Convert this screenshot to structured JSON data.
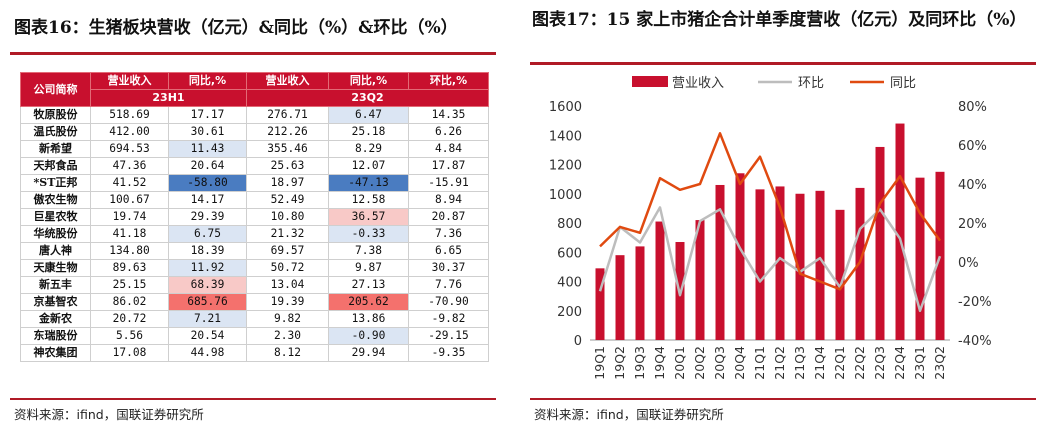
{
  "left": {
    "title": "图表16：生猪板块营收（亿元）&同比（%）&环比（%）",
    "source": "资料来源：ifind，国联证券研究所",
    "header": {
      "company": "公司简称",
      "columns": [
        "营业收入",
        "同比,%",
        "营业收入",
        "同比,%",
        "环比,%"
      ],
      "period_a": "23H1",
      "period_b": "23Q2"
    },
    "rows": [
      {
        "company": "牧原股份",
        "rev_h1": "518.69",
        "yoy_h1": "17.17",
        "rev_q2": "276.71",
        "yoy_q2": "6.47",
        "qoq": "14.35",
        "c_yoy_h1": "white",
        "c_yoy_q2": "blue"
      },
      {
        "company": "温氏股份",
        "rev_h1": "412.00",
        "yoy_h1": "30.61",
        "rev_q2": "212.26",
        "yoy_q2": "25.18",
        "qoq": "6.26",
        "c_yoy_h1": "white",
        "c_yoy_q2": "white"
      },
      {
        "company": "新希望",
        "rev_h1": "694.53",
        "yoy_h1": "11.43",
        "rev_q2": "355.46",
        "yoy_q2": "8.29",
        "qoq": "4.84",
        "c_yoy_h1": "blue",
        "c_yoy_q2": "white"
      },
      {
        "company": "天邦食品",
        "rev_h1": "47.36",
        "yoy_h1": "20.64",
        "rev_q2": "25.63",
        "yoy_q2": "12.07",
        "qoq": "17.87",
        "c_yoy_h1": "white",
        "c_yoy_q2": "white"
      },
      {
        "company": "*ST正邦",
        "rev_h1": "41.52",
        "yoy_h1": "-58.80",
        "rev_q2": "18.97",
        "yoy_q2": "-47.13",
        "qoq": "-15.91",
        "c_yoy_h1": "dblue",
        "c_yoy_q2": "dblue"
      },
      {
        "company": "傲农生物",
        "rev_h1": "100.67",
        "yoy_h1": "14.17",
        "rev_q2": "52.49",
        "yoy_q2": "12.58",
        "qoq": "8.94",
        "c_yoy_h1": "white",
        "c_yoy_q2": "white"
      },
      {
        "company": "巨星农牧",
        "rev_h1": "19.74",
        "yoy_h1": "29.39",
        "rev_q2": "10.80",
        "yoy_q2": "36.57",
        "qoq": "20.87",
        "c_yoy_h1": "white",
        "c_yoy_q2": "lred"
      },
      {
        "company": "华统股份",
        "rev_h1": "41.18",
        "yoy_h1": "6.75",
        "rev_q2": "21.32",
        "yoy_q2": "-0.33",
        "qoq": "7.36",
        "c_yoy_h1": "blue",
        "c_yoy_q2": "blue"
      },
      {
        "company": "唐人神",
        "rev_h1": "134.80",
        "yoy_h1": "18.39",
        "rev_q2": "69.57",
        "yoy_q2": "7.38",
        "qoq": "6.65",
        "c_yoy_h1": "white",
        "c_yoy_q2": "white"
      },
      {
        "company": "天康生物",
        "rev_h1": "89.63",
        "yoy_h1": "11.92",
        "rev_q2": "50.72",
        "yoy_q2": "9.87",
        "qoq": "30.37",
        "c_yoy_h1": "blue",
        "c_yoy_q2": "white"
      },
      {
        "company": "新五丰",
        "rev_h1": "25.15",
        "yoy_h1": "68.39",
        "rev_q2": "13.04",
        "yoy_q2": "27.13",
        "qoq": "7.76",
        "c_yoy_h1": "lred",
        "c_yoy_q2": "white"
      },
      {
        "company": "京基智农",
        "rev_h1": "86.02",
        "yoy_h1": "685.76",
        "rev_q2": "19.39",
        "yoy_q2": "205.62",
        "qoq": "-70.90",
        "c_yoy_h1": "red",
        "c_yoy_q2": "red"
      },
      {
        "company": "金新农",
        "rev_h1": "20.72",
        "yoy_h1": "7.21",
        "rev_q2": "9.82",
        "yoy_q2": "13.86",
        "qoq": "-9.82",
        "c_yoy_h1": "blue",
        "c_yoy_q2": "white"
      },
      {
        "company": "东瑞股份",
        "rev_h1": "5.56",
        "yoy_h1": "20.54",
        "rev_q2": "2.30",
        "yoy_q2": "-0.90",
        "qoq": "-29.15",
        "c_yoy_h1": "white",
        "c_yoy_q2": "blue"
      },
      {
        "company": "神农集团",
        "rev_h1": "17.08",
        "yoy_h1": "44.98",
        "rev_q2": "8.12",
        "yoy_q2": "29.94",
        "qoq": "-9.35",
        "c_yoy_h1": "white",
        "c_yoy_q2": "white"
      }
    ]
  },
  "right": {
    "title": "图表17：15 家上市猪企合计单季度营收（亿元）及同环比（%）",
    "source": "资料来源：ifind，国联证券研究所",
    "chart_data": {
      "type": "bar+line",
      "categories": [
        "19Q1",
        "19Q2",
        "19Q3",
        "19Q4",
        "20Q1",
        "20Q2",
        "20Q3",
        "20Q4",
        "21Q1",
        "21Q2",
        "21Q3",
        "21Q4",
        "22Q1",
        "22Q2",
        "22Q3",
        "22Q4",
        "23Q1",
        "23Q2"
      ],
      "series": [
        {
          "name": "营业收入",
          "type": "bar",
          "axis": "left",
          "color": "#c8102e",
          "values": [
            490,
            580,
            640,
            810,
            670,
            820,
            1060,
            1140,
            1030,
            1050,
            1000,
            1020,
            890,
            1040,
            1320,
            1480,
            1110,
            1150
          ]
        },
        {
          "name": "环比",
          "type": "line",
          "axis": "right",
          "color": "#bdbdbd",
          "values": [
            -15,
            18,
            10,
            28,
            -17,
            21,
            27,
            7,
            -10,
            2,
            -5,
            2,
            -13,
            17,
            27,
            12,
            -25,
            3
          ]
        },
        {
          "name": "同比",
          "type": "line",
          "axis": "right",
          "color": "#e04a10",
          "values": [
            8,
            18,
            15,
            43,
            37,
            40,
            66,
            40,
            54,
            28,
            -6,
            -10,
            -14,
            0,
            30,
            44,
            25,
            11
          ]
        }
      ],
      "y_left": {
        "min": 0,
        "max": 1600,
        "ticks": [
          "0",
          "200",
          "400",
          "600",
          "800",
          "1000",
          "1200",
          "1400",
          "1600"
        ]
      },
      "y_right": {
        "min": -40,
        "max": 80,
        "ticks": [
          "-40%",
          "-20%",
          "0%",
          "20%",
          "40%",
          "60%",
          "80%"
        ]
      },
      "legend": [
        "营业收入",
        "环比",
        "同比"
      ],
      "legend_position": "top"
    }
  }
}
